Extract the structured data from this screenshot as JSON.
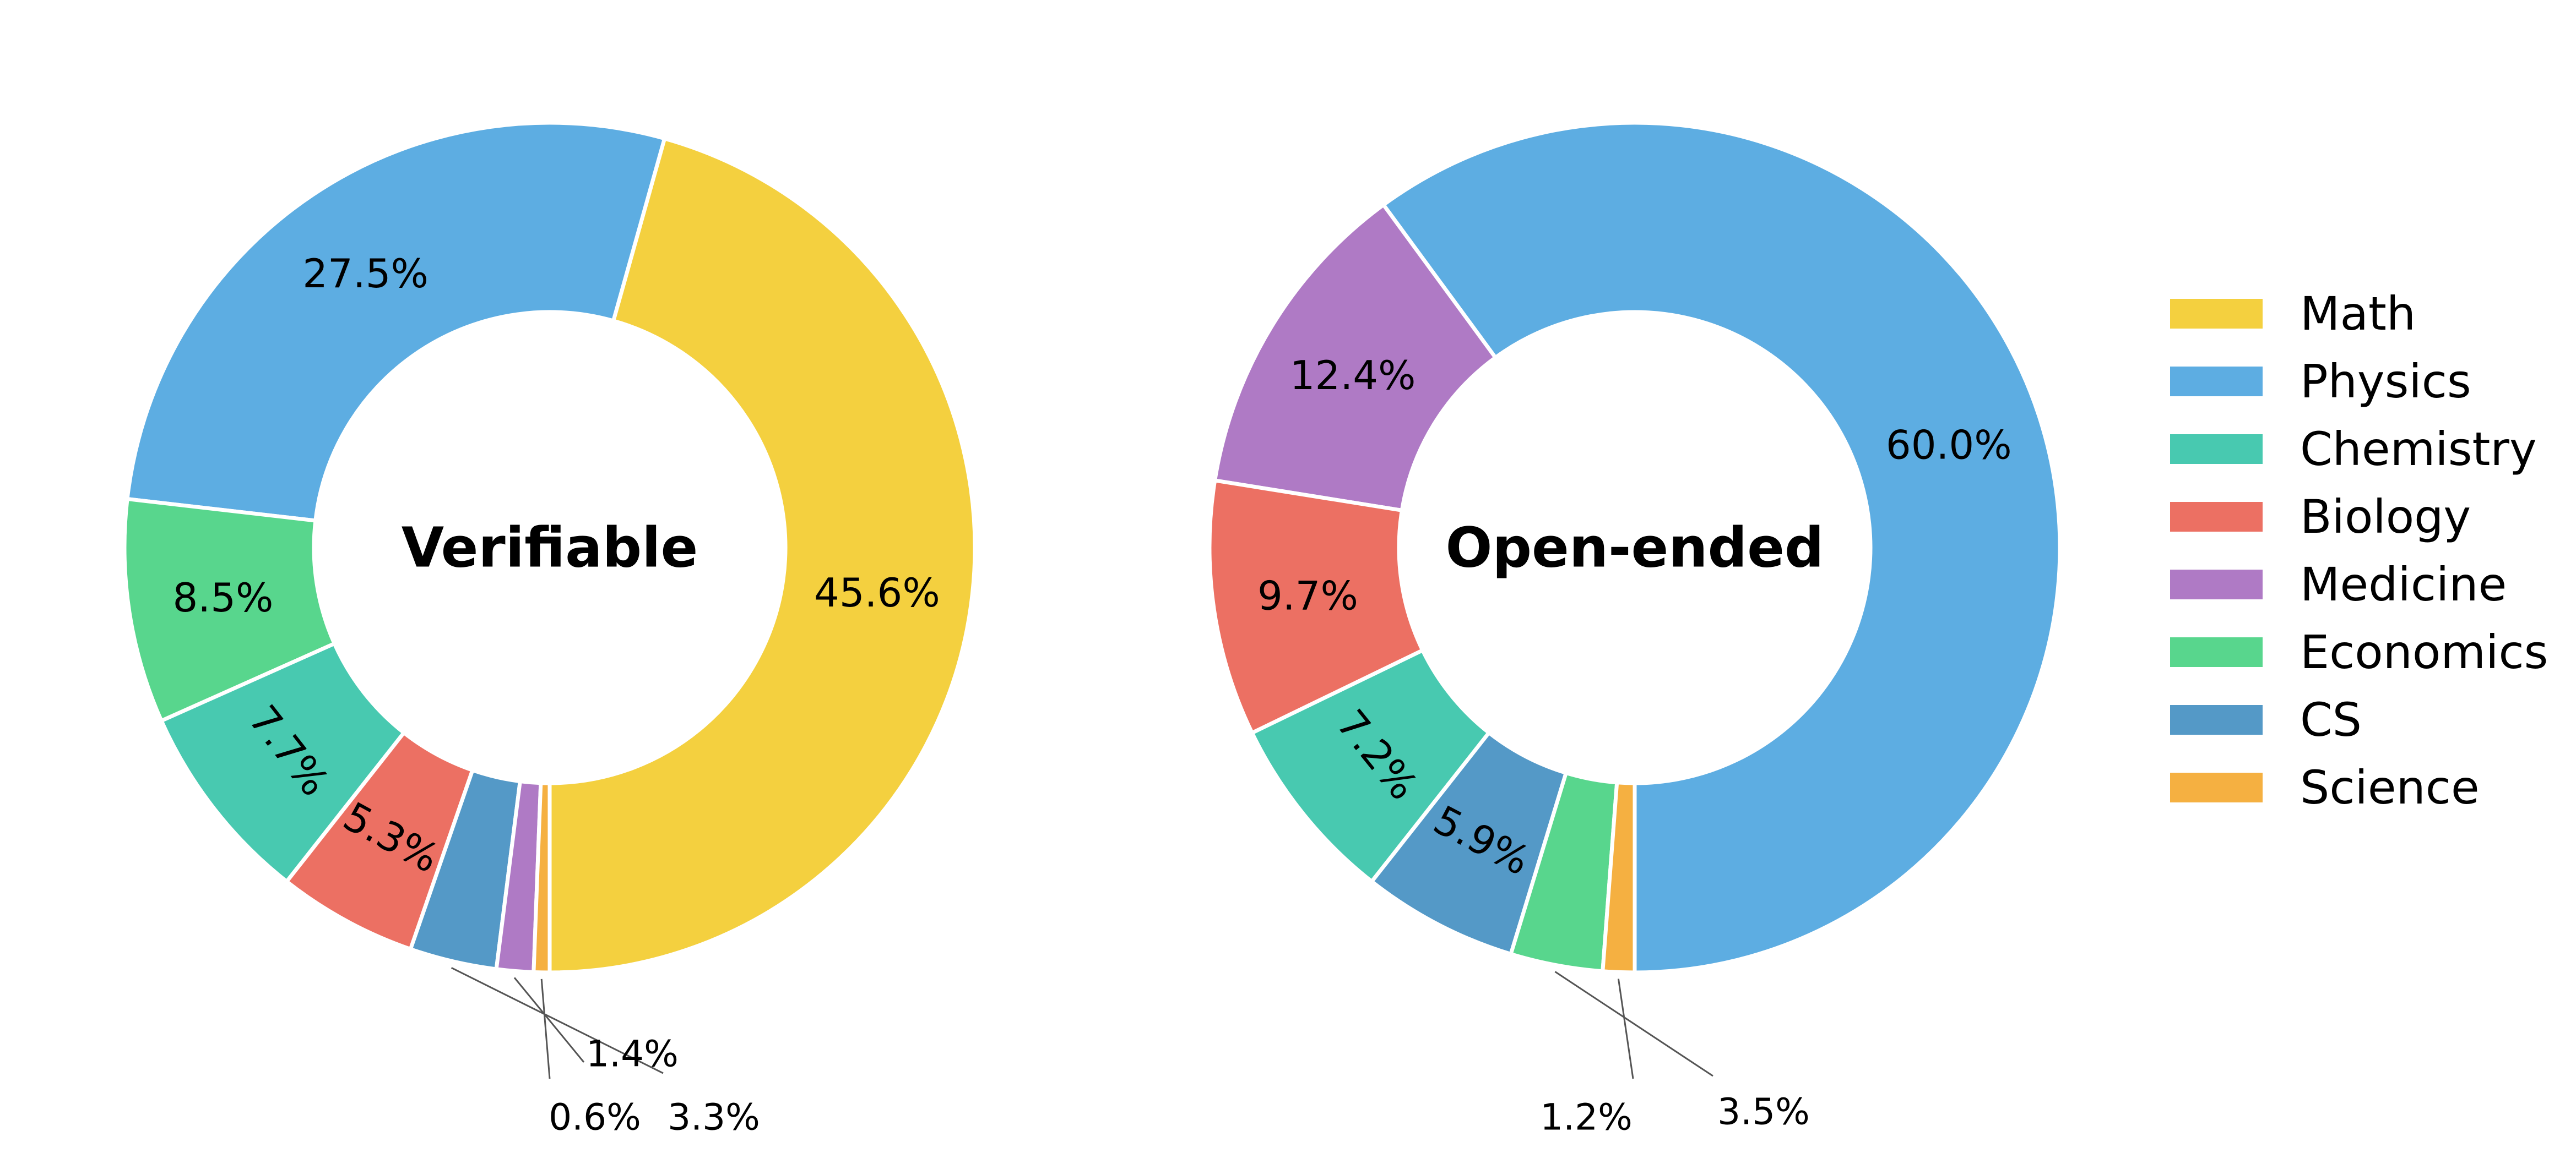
{
  "chart_data": [
    {
      "type": "pie",
      "title": "Verifiable",
      "slices": [
        {
          "name": "Math",
          "value": 45.6,
          "label": "45.6%"
        },
        {
          "name": "Physics",
          "value": 27.5,
          "label": "27.5%"
        },
        {
          "name": "Economics",
          "value": 8.5,
          "label": "8.5%"
        },
        {
          "name": "Chemistry",
          "value": 7.7,
          "label": "7.7%"
        },
        {
          "name": "Biology",
          "value": 5.3,
          "label": "5.3%"
        },
        {
          "name": "CS",
          "value": 3.3,
          "label": "3.3%"
        },
        {
          "name": "Medicine",
          "value": 1.4,
          "label": "1.4%"
        },
        {
          "name": "Science",
          "value": 0.6,
          "label": "0.6%"
        }
      ]
    },
    {
      "type": "pie",
      "title": "Open-ended",
      "slices": [
        {
          "name": "Physics",
          "value": 60.0,
          "label": "60.0%"
        },
        {
          "name": "Medicine",
          "value": 12.4,
          "label": "12.4%"
        },
        {
          "name": "Biology",
          "value": 9.7,
          "label": "9.7%"
        },
        {
          "name": "Chemistry",
          "value": 7.2,
          "label": "7.2%"
        },
        {
          "name": "CS",
          "value": 5.9,
          "label": "5.9%"
        },
        {
          "name": "Economics",
          "value": 3.5,
          "label": "3.5%"
        },
        {
          "name": "Science",
          "value": 1.2,
          "label": "1.2%"
        }
      ]
    }
  ],
  "legend": {
    "placement": "right",
    "items": [
      {
        "name": "Math",
        "color": "#F4D03F"
      },
      {
        "name": "Physics",
        "color": "#5DADE2"
      },
      {
        "name": "Chemistry",
        "color": "#48C9B0"
      },
      {
        "name": "Biology",
        "color": "#EC7063"
      },
      {
        "name": "Medicine",
        "color": "#AF7AC5"
      },
      {
        "name": "Economics",
        "color": "#58D68D"
      },
      {
        "name": "CS",
        "color": "#5499C7"
      },
      {
        "name": "Science",
        "color": "#F5B041"
      }
    ]
  }
}
